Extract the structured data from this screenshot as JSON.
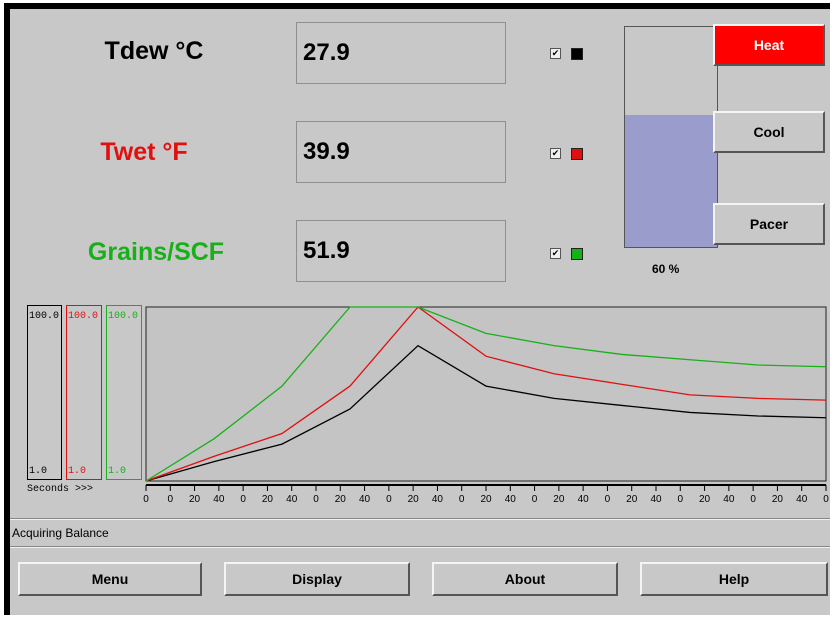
{
  "readings": [
    {
      "label": "Tdew °C",
      "value": "27.9",
      "checked": true,
      "color": "#000000"
    },
    {
      "label": "Twet °F",
      "value": "39.9",
      "checked": true,
      "color": "#e01010"
    },
    {
      "label": "Grains/SCF",
      "value": "51.9",
      "checked": true,
      "color": "#18b018"
    }
  ],
  "check_mark": "✔",
  "gauge": {
    "percent_text": "60 %",
    "level": 0.6,
    "fill_color": "#9a9ccc"
  },
  "side_buttons": {
    "heat": "Heat",
    "cool": "Cool",
    "pacer": "Pacer",
    "heat_color": "#ff0000"
  },
  "chart": {
    "scales": [
      {
        "max": "100.0",
        "min": "1.0",
        "color": "#000000"
      },
      {
        "max": "100.0",
        "min": "1.0",
        "color": "#e01010"
      },
      {
        "max": "100.0",
        "min": "1.0",
        "color": "#18b018"
      }
    ],
    "x_axis_caption": "Seconds >>>",
    "tick_labels": [
      "0",
      "0",
      "20",
      "40",
      "0",
      "20",
      "40",
      "0",
      "20",
      "40",
      "0",
      "20",
      "40",
      "0",
      "20",
      "40",
      "0",
      "20",
      "40",
      "0",
      "20",
      "40",
      "0",
      "20",
      "40",
      "0",
      "20",
      "40",
      "0"
    ]
  },
  "chart_data": {
    "type": "line",
    "xlabel": "Seconds >>>",
    "ylim": [
      1.0,
      100.0
    ],
    "x": [
      0,
      10,
      20,
      30,
      40,
      50,
      60,
      70,
      80,
      90,
      100
    ],
    "series": [
      {
        "color": "#000000",
        "values": [
          1,
          12,
          22,
          42,
          78,
          55,
          48,
          44,
          40,
          38,
          37
        ]
      },
      {
        "color": "#e01010",
        "values": [
          1,
          15,
          28,
          55,
          100,
          72,
          62,
          56,
          50,
          48,
          47
        ]
      },
      {
        "color": "#18b018",
        "values": [
          1,
          25,
          55,
          100,
          100,
          85,
          78,
          73,
          70,
          67,
          66
        ]
      }
    ]
  },
  "status": "Acquiring Balance",
  "menu": {
    "menu": "Menu",
    "display": "Display",
    "about": "About",
    "help": "Help"
  }
}
